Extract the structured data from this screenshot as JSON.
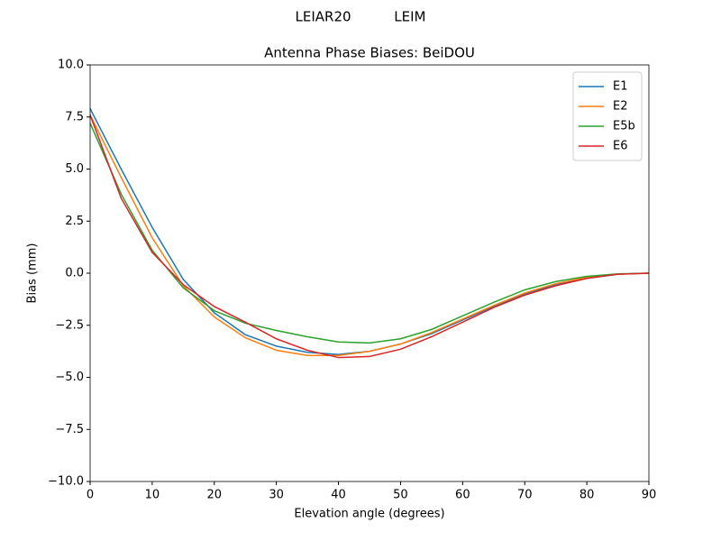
{
  "chart_data": {
    "type": "line",
    "suptitle": "LEIAR20          LEIM",
    "title": "Antenna Phase Biases: BeiDOU",
    "xlabel": "Elevation angle (degrees)",
    "ylabel": "Bias (mm)",
    "x": [
      0,
      5,
      10,
      15,
      20,
      25,
      30,
      35,
      40,
      45,
      50,
      55,
      60,
      65,
      70,
      75,
      80,
      85,
      90
    ],
    "series": [
      {
        "name": "E1",
        "color": "#1f77b4",
        "values": [
          7.9,
          5.0,
          2.2,
          -0.3,
          -1.9,
          -2.95,
          -3.5,
          -3.8,
          -3.9,
          -3.75,
          -3.4,
          -2.9,
          -2.25,
          -1.6,
          -1.0,
          -0.55,
          -0.25,
          -0.05,
          0
        ]
      },
      {
        "name": "E2",
        "color": "#ff7f0e",
        "values": [
          7.6,
          4.6,
          1.7,
          -0.6,
          -2.1,
          -3.1,
          -3.7,
          -3.95,
          -3.95,
          -3.75,
          -3.4,
          -2.85,
          -2.2,
          -1.55,
          -0.95,
          -0.5,
          -0.2,
          -0.05,
          0
        ]
      },
      {
        "name": "E5b",
        "color": "#2ca02c",
        "values": [
          7.2,
          3.8,
          1.1,
          -0.7,
          -1.8,
          -2.4,
          -2.75,
          -3.05,
          -3.3,
          -3.35,
          -3.15,
          -2.7,
          -2.05,
          -1.4,
          -0.8,
          -0.4,
          -0.15,
          -0.03,
          0
        ]
      },
      {
        "name": "E6",
        "color": "#d62728",
        "values": [
          7.6,
          3.6,
          1.0,
          -0.55,
          -1.6,
          -2.35,
          -3.15,
          -3.7,
          -4.05,
          -4.0,
          -3.65,
          -3.05,
          -2.35,
          -1.65,
          -1.05,
          -0.6,
          -0.25,
          -0.05,
          0
        ]
      }
    ],
    "xlim": [
      0,
      90
    ],
    "xticks": [
      0,
      10,
      20,
      30,
      40,
      50,
      60,
      70,
      80,
      90
    ],
    "ylim": [
      -10,
      10
    ],
    "yticks": [
      {
        "value": -10,
        "label": "−10.0"
      },
      {
        "value": -7.5,
        "label": "−7.5"
      },
      {
        "value": -5,
        "label": "−5.0"
      },
      {
        "value": -2.5,
        "label": "−2.5"
      },
      {
        "value": 0,
        "label": "0.0"
      },
      2.5,
      {
        "value": 5,
        "label": "5.0"
      },
      7.5,
      {
        "value": 10,
        "label": "10.0"
      }
    ],
    "legend": "upper right"
  }
}
